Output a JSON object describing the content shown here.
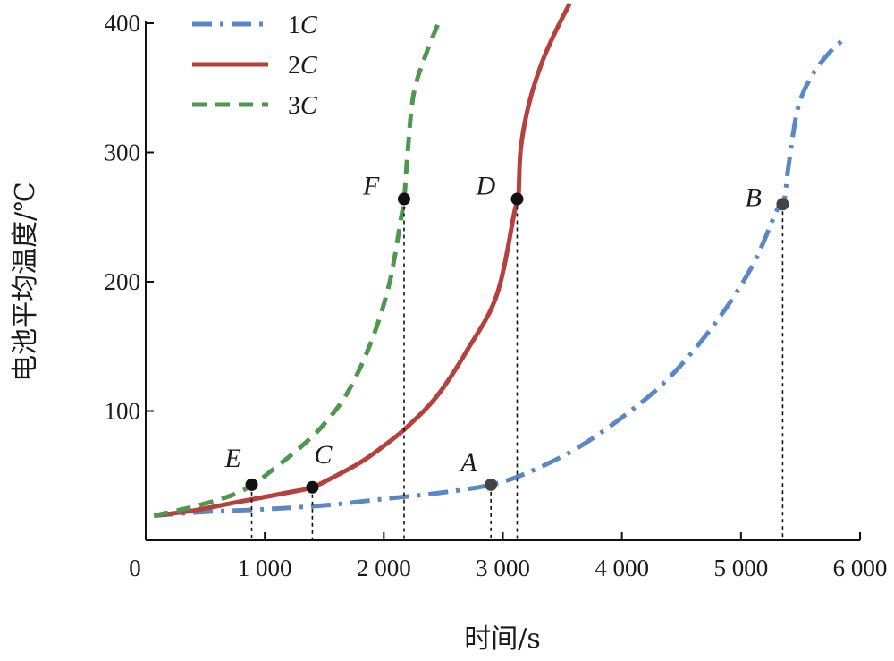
{
  "chart_data": {
    "type": "line",
    "xlabel": "时间/s",
    "ylabel": "电池平均温度/℃",
    "xlim": [
      0,
      6000
    ],
    "ylim": [
      0,
      400
    ],
    "x_ticks": [
      0,
      1000,
      2000,
      3000,
      4000,
      5000,
      6000
    ],
    "x_tick_labels": [
      "0",
      "1 000",
      "2 000",
      "3 000",
      "4 000",
      "5 000",
      "6 000"
    ],
    "y_ticks": [
      100,
      200,
      300,
      400
    ],
    "y_tick_labels": [
      "100",
      "200",
      "300",
      "400"
    ],
    "legend": "top-left",
    "grid": false,
    "series": [
      {
        "name": "1C",
        "name_num": "1",
        "name_unit": "C",
        "style": "dash-dot",
        "color": "#5b87c5",
        "points": [
          [
            70,
            19
          ],
          [
            500,
            22
          ],
          [
            1000,
            24
          ],
          [
            1500,
            27
          ],
          [
            2000,
            32
          ],
          [
            2500,
            37
          ],
          [
            2900,
            43
          ],
          [
            3200,
            52
          ],
          [
            3600,
            70
          ],
          [
            4000,
            95
          ],
          [
            4400,
            126
          ],
          [
            4800,
            170
          ],
          [
            5100,
            213
          ],
          [
            5300,
            255
          ],
          [
            5360,
            262
          ],
          [
            5400,
            290
          ],
          [
            5480,
            335
          ],
          [
            5600,
            360
          ],
          [
            5750,
            378
          ],
          [
            5870,
            388
          ]
        ]
      },
      {
        "name": "2C",
        "name_num": "2",
        "name_unit": "C",
        "style": "solid",
        "color": "#b5403d",
        "points": [
          [
            70,
            19
          ],
          [
            400,
            23
          ],
          [
            800,
            30
          ],
          [
            1200,
            37
          ],
          [
            1400,
            41
          ],
          [
            1600,
            50
          ],
          [
            1800,
            60
          ],
          [
            2000,
            73
          ],
          [
            2200,
            88
          ],
          [
            2450,
            112
          ],
          [
            2700,
            147
          ],
          [
            2950,
            190
          ],
          [
            3100,
            255
          ],
          [
            3130,
            265
          ],
          [
            3150,
            303
          ],
          [
            3220,
            338
          ],
          [
            3330,
            370
          ],
          [
            3450,
            395
          ],
          [
            3560,
            415
          ]
        ]
      },
      {
        "name": "3C",
        "name_num": "3",
        "name_unit": "C",
        "style": "dashed",
        "color": "#4e9750",
        "points": [
          [
            70,
            19
          ],
          [
            400,
            26
          ],
          [
            700,
            34
          ],
          [
            900,
            43
          ],
          [
            1100,
            57
          ],
          [
            1300,
            72
          ],
          [
            1500,
            90
          ],
          [
            1700,
            115
          ],
          [
            1900,
            155
          ],
          [
            2050,
            200
          ],
          [
            2150,
            252
          ],
          [
            2170,
            262
          ],
          [
            2200,
            300
          ],
          [
            2250,
            345
          ],
          [
            2350,
            375
          ],
          [
            2480,
            405
          ]
        ]
      }
    ],
    "markers": [
      {
        "label": "A",
        "x": 2900,
        "y": 43,
        "color": "#444444"
      },
      {
        "label": "B",
        "x": 5350,
        "y": 260,
        "color": "#444444"
      },
      {
        "label": "C",
        "x": 1400,
        "y": 41,
        "color": "#111111"
      },
      {
        "label": "D",
        "x": 3120,
        "y": 264,
        "color": "#111111"
      },
      {
        "label": "E",
        "x": 890,
        "y": 43,
        "color": "#111111"
      },
      {
        "label": "F",
        "x": 2170,
        "y": 264,
        "color": "#111111"
      }
    ]
  }
}
